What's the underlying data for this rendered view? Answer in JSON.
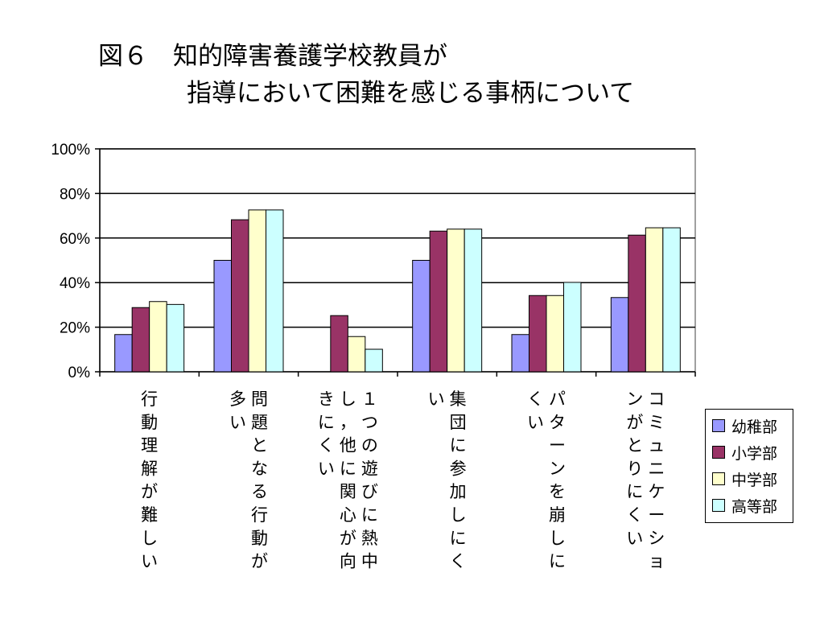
{
  "title": {
    "line1": "図６　知的障害養護学校教員が",
    "line2": "指導において困難を感じる事柄について"
  },
  "colors": {
    "幼稚部": "#9999ff",
    "小学部": "#993366",
    "中学部": "#ffffcc",
    "高等部": "#ccffff"
  },
  "chart_data": {
    "type": "bar",
    "title": "図６　知的障害養護学校教員が指導において困難を感じる事柄について",
    "ylim": [
      0,
      100
    ],
    "yticks": [
      "0%",
      "20%",
      "40%",
      "60%",
      "80%",
      "100%"
    ],
    "grid": true,
    "legend_position": "right",
    "categories": [
      "行動理解が難しい",
      "問題となる行動が多い",
      "１つの遊びに熱中し，他に関心が向きにくい",
      "集団に参加しにくい",
      "パターンを崩しにくい",
      "コミュニケーションがとりにくい"
    ],
    "category_columns": [
      [
        "行動理解が難しい"
      ],
      [
        "問題となる行動が",
        "多い"
      ],
      [
        "１つの遊びに熱中",
        "し，他に関心が向",
        "きにくい"
      ],
      [
        "集団に参加しにく",
        "い"
      ],
      [
        "パターンを崩しに",
        "くい"
      ],
      [
        "コミュニケーショ",
        "ンがとりにくい"
      ]
    ],
    "series": [
      {
        "name": "幼稚部",
        "values": [
          16.7,
          50,
          0,
          50,
          16.7,
          33.3
        ]
      },
      {
        "name": "小学部",
        "values": [
          28.8,
          68.2,
          25.2,
          63.1,
          34.2,
          61.3
        ]
      },
      {
        "name": "中学部",
        "values": [
          31.5,
          72.6,
          15.8,
          64,
          34.2,
          64.6
        ]
      },
      {
        "name": "高等部",
        "values": [
          30.2,
          72.6,
          10.1,
          64,
          40.1,
          64.6
        ]
      }
    ]
  }
}
